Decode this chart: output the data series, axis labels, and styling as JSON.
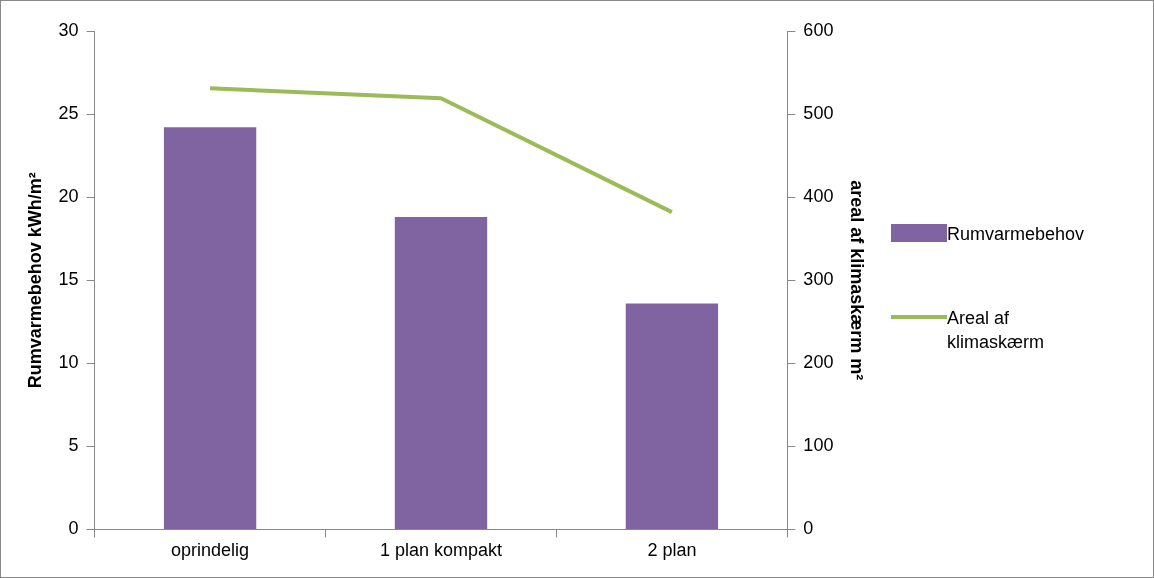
{
  "chart_data": {
    "type": "bar",
    "ylabel": "Rumvarmebehov kWh/m²",
    "y2label": "areal af klimaskærm m²",
    "categories": [
      "oprindelig",
      "1 plan kompakt",
      "2 plan"
    ],
    "series": [
      {
        "name": "Rumvarmebehov",
        "color": "#8064a2",
        "values": [
          24.2,
          18.8,
          13.6
        ]
      },
      {
        "name": "Areal af klimaskærm",
        "type": "line",
        "axis": "y2",
        "color": "#9bbb59",
        "values": [
          531,
          519,
          382
        ]
      }
    ],
    "ylim": [
      0,
      30
    ],
    "yticks": [
      0,
      5,
      10,
      15,
      20,
      25,
      30
    ],
    "y2lim": [
      0,
      600
    ],
    "y2ticks": [
      0,
      100,
      200,
      300,
      400,
      500,
      600
    ],
    "grid": false,
    "legend": "right",
    "marker": "none"
  }
}
